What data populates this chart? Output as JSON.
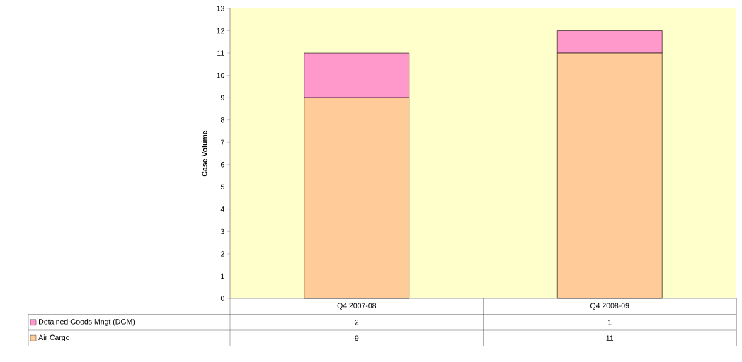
{
  "chart_data": {
    "type": "bar",
    "stacked": true,
    "ylabel": "Case Volume",
    "categories": [
      "Q4 2007-08",
      "Q4 2008-09"
    ],
    "series": [
      {
        "name": "Air Cargo",
        "color": "#ffcc99",
        "values": [
          9,
          11
        ]
      },
      {
        "name": "Detained Goods Mngt (DGM)",
        "color": "#ff99cc",
        "values": [
          2,
          1
        ]
      }
    ],
    "ylim": [
      0,
      13
    ],
    "yticks": [
      0,
      1,
      2,
      3,
      4,
      5,
      6,
      7,
      8,
      9,
      10,
      11,
      12,
      13
    ],
    "legend": "bottom",
    "data_labels": true
  }
}
